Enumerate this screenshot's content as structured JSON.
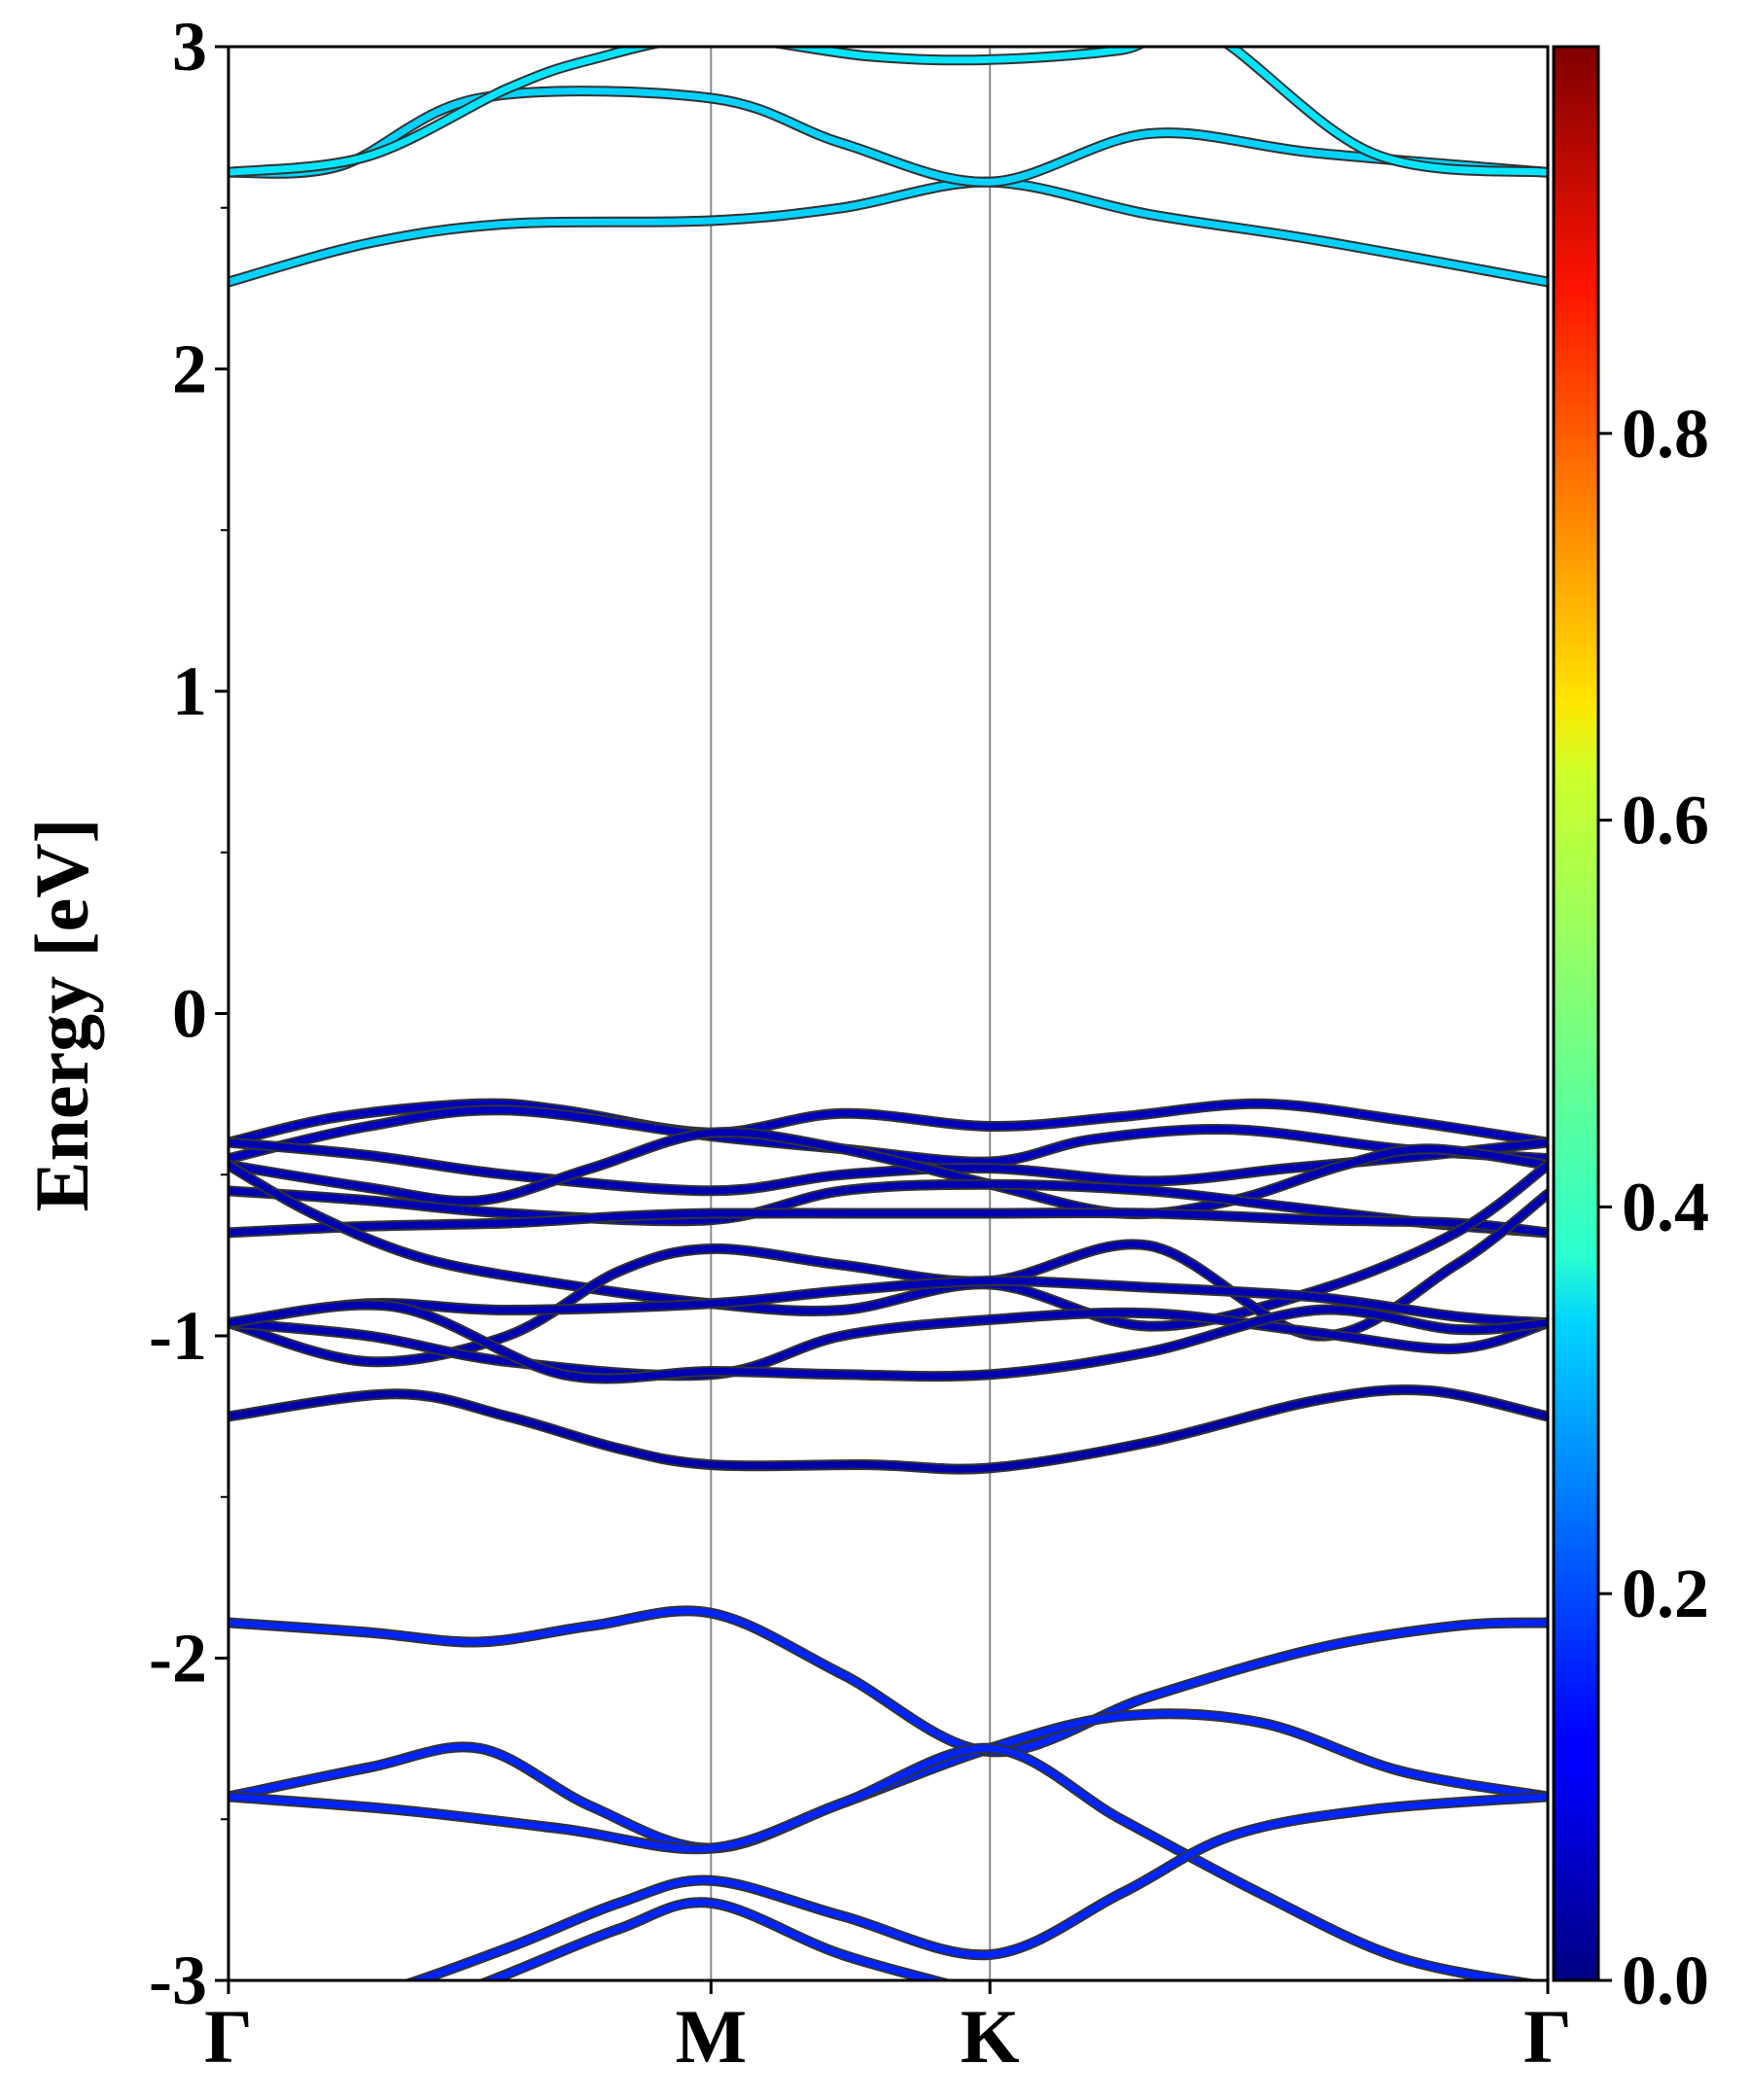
{
  "chart_data": {
    "type": "line",
    "title": "",
    "xlabel": "",
    "ylabel": "Energy [eV]",
    "ylim": [
      -3,
      3
    ],
    "yticks": [
      -3,
      -2,
      -1,
      0,
      1,
      2,
      3
    ],
    "ytick_labels": [
      "-3",
      "-2",
      "-1",
      "0",
      "1",
      "2",
      "3"
    ],
    "x_path": [
      0,
      1.73,
      2.73,
      4.73
    ],
    "xtick_labels": [
      "Γ",
      "M",
      "K",
      "Γ"
    ],
    "grid": "vertical lines at high-symmetry points",
    "colormap": "jet",
    "colorbar": {
      "range": [
        0,
        1
      ],
      "ticks": [
        0.0,
        0.2,
        0.4,
        0.6,
        0.8
      ],
      "tick_labels": [
        "0.0",
        "0.2",
        "0.4",
        "0.6",
        "0.8"
      ]
    },
    "series": [
      {
        "weight": 0.33,
        "x": [
          0,
          0.5,
          1.0,
          1.73,
          2.2,
          2.73,
          3.3,
          3.9,
          4.73
        ],
        "y": [
          2.27,
          2.39,
          2.45,
          2.46,
          2.5,
          2.58,
          2.48,
          2.4,
          2.27
        ]
      },
      {
        "weight": 0.33,
        "x": [
          0,
          0.4,
          0.9,
          1.73,
          2.2,
          2.73,
          3.3,
          3.9,
          4.73
        ],
        "y": [
          2.61,
          2.63,
          2.84,
          2.84,
          2.7,
          2.58,
          2.73,
          2.67,
          2.61
        ]
      },
      {
        "weight": 0.35,
        "x": [
          0,
          0.5,
          1.0,
          1.3,
          1.73,
          2.3,
          2.73,
          3.2,
          3.5,
          4.1,
          4.73
        ],
        "y": [
          2.61,
          2.66,
          2.87,
          2.96,
          3.03,
          2.97,
          2.96,
          2.99,
          3.05,
          2.67,
          2.61
        ]
      },
      {
        "weight": 0.06,
        "x": [
          0,
          0.4,
          0.9,
          1.2,
          1.73,
          2.2,
          2.73,
          3.2,
          3.7,
          4.2,
          4.73
        ],
        "y": [
          -0.4,
          -0.32,
          -0.28,
          -0.3,
          -0.37,
          -0.31,
          -0.35,
          -0.32,
          -0.28,
          -0.33,
          -0.4
        ]
      },
      {
        "weight": 0.06,
        "x": [
          0,
          0.5,
          1.0,
          1.73,
          2.2,
          2.73,
          3.1,
          3.6,
          4.2,
          4.73
        ],
        "y": [
          -0.45,
          -0.35,
          -0.3,
          -0.38,
          -0.42,
          -0.46,
          -0.39,
          -0.36,
          -0.42,
          -0.45
        ]
      },
      {
        "weight": 0.05,
        "x": [
          0,
          0.5,
          1.0,
          1.73,
          2.2,
          2.73,
          3.3,
          3.8,
          4.3,
          4.73
        ],
        "y": [
          -0.4,
          -0.44,
          -0.5,
          -0.55,
          -0.5,
          -0.48,
          -0.52,
          -0.48,
          -0.44,
          -0.4
        ]
      },
      {
        "weight": 0.05,
        "x": [
          0,
          0.5,
          0.9,
          1.3,
          1.73,
          2.2,
          2.73,
          3.2,
          3.6,
          4.0,
          4.3,
          4.73
        ],
        "y": [
          -0.47,
          -0.54,
          -0.58,
          -0.48,
          -0.37,
          -0.42,
          -0.53,
          -0.62,
          -0.58,
          -0.47,
          -0.42,
          -0.47
        ]
      },
      {
        "weight": 0.05,
        "x": [
          0,
          0.5,
          1.0,
          1.73,
          2.2,
          2.73,
          3.3,
          3.8,
          4.3,
          4.73
        ],
        "y": [
          -0.55,
          -0.58,
          -0.62,
          -0.64,
          -0.55,
          -0.53,
          -0.55,
          -0.6,
          -0.65,
          -0.68
        ]
      },
      {
        "weight": 0.05,
        "x": [
          0,
          0.5,
          1.0,
          1.4,
          1.73,
          2.3,
          2.73,
          3.3,
          3.9,
          4.4,
          4.73
        ],
        "y": [
          -0.68,
          -0.66,
          -0.65,
          -0.63,
          -0.62,
          -0.62,
          -0.62,
          -0.62,
          -0.64,
          -0.65,
          -0.68
        ]
      },
      {
        "weight": 0.05,
        "x": [
          0,
          0.3,
          0.7,
          1.2,
          1.73,
          2.2,
          2.73,
          3.3,
          3.9,
          4.4,
          4.73
        ],
        "y": [
          -0.47,
          -0.62,
          -0.76,
          -0.84,
          -0.9,
          -0.92,
          -0.84,
          -0.97,
          -0.86,
          -0.68,
          -0.47
        ]
      },
      {
        "weight": 0.05,
        "x": [
          0,
          0.5,
          1.0,
          1.4,
          1.73,
          2.2,
          2.73,
          3.3,
          3.9,
          4.4,
          4.73
        ],
        "y": [
          -0.96,
          -1.08,
          -1.0,
          -0.8,
          -0.73,
          -0.78,
          -0.83,
          -0.72,
          -1.0,
          -0.78,
          -0.56
        ]
      },
      {
        "weight": 0.05,
        "x": [
          0,
          0.5,
          1.0,
          1.73,
          2.2,
          2.73,
          3.3,
          3.9,
          4.4,
          4.73
        ],
        "y": [
          -0.96,
          -0.9,
          -0.92,
          -0.9,
          -0.86,
          -0.83,
          -0.85,
          -0.88,
          -0.94,
          -0.96
        ]
      },
      {
        "weight": 0.05,
        "x": [
          0,
          0.5,
          1.0,
          1.73,
          2.2,
          2.73,
          3.3,
          3.9,
          4.4,
          4.73
        ],
        "y": [
          -0.96,
          -1.0,
          -1.08,
          -1.12,
          -1.0,
          -0.95,
          -0.93,
          -0.99,
          -1.04,
          -0.96
        ]
      },
      {
        "weight": 0.05,
        "x": [
          0,
          0.6,
          1.2,
          1.73,
          2.2,
          2.73,
          3.3,
          3.9,
          4.4,
          4.73
        ],
        "y": [
          -0.96,
          -0.91,
          -1.12,
          -1.11,
          -1.12,
          -1.12,
          -1.05,
          -0.92,
          -0.98,
          -0.96
        ]
      },
      {
        "weight": 0.04,
        "x": [
          0,
          0.6,
          1.0,
          1.4,
          1.73,
          2.3,
          2.73,
          3.3,
          3.9,
          4.3,
          4.73
        ],
        "y": [
          -1.25,
          -1.18,
          -1.25,
          -1.35,
          -1.4,
          -1.4,
          -1.41,
          -1.33,
          -1.2,
          -1.17,
          -1.25
        ]
      },
      {
        "weight": 0.16,
        "x": [
          0,
          0.5,
          0.9,
          1.3,
          1.73,
          2.2,
          2.73,
          3.3,
          3.9,
          4.4,
          4.73
        ],
        "y": [
          -1.89,
          -1.92,
          -1.95,
          -1.9,
          -1.86,
          -2.05,
          -2.29,
          -2.12,
          -1.97,
          -1.9,
          -1.89
        ]
      },
      {
        "weight": 0.16,
        "x": [
          0,
          0.5,
          0.9,
          1.3,
          1.73,
          2.2,
          2.73,
          3.2,
          3.7,
          4.2,
          4.73
        ],
        "y": [
          -2.43,
          -2.34,
          -2.28,
          -2.46,
          -2.59,
          -2.45,
          -2.28,
          -2.18,
          -2.2,
          -2.35,
          -2.43
        ]
      },
      {
        "weight": 0.16,
        "x": [
          0,
          0.6,
          1.2,
          1.73,
          2.2,
          2.73,
          3.2,
          3.7,
          4.2,
          4.73
        ],
        "y": [
          -2.43,
          -2.47,
          -2.53,
          -2.59,
          -2.45,
          -2.28,
          -2.5,
          -2.73,
          -2.93,
          -3.02
        ]
      },
      {
        "weight": 0.16,
        "x": [
          0,
          0.5,
          1.0,
          1.4,
          1.73,
          2.2,
          2.73,
          3.2,
          3.6,
          4.1,
          4.73
        ],
        "y": [
          -3.15,
          -3.05,
          -2.9,
          -2.76,
          -2.69,
          -2.8,
          -2.92,
          -2.73,
          -2.55,
          -2.47,
          -2.43
        ]
      },
      {
        "weight": 0.16,
        "x": [
          0,
          0.5,
          1.0,
          1.4,
          1.73,
          2.2,
          2.73,
          3.2,
          3.6,
          4.2,
          4.73
        ],
        "y": [
          -3.3,
          -3.15,
          -2.98,
          -2.84,
          -2.76,
          -2.92,
          -3.05,
          -3.2,
          -3.3,
          -3.4,
          -3.45
        ]
      }
    ]
  }
}
